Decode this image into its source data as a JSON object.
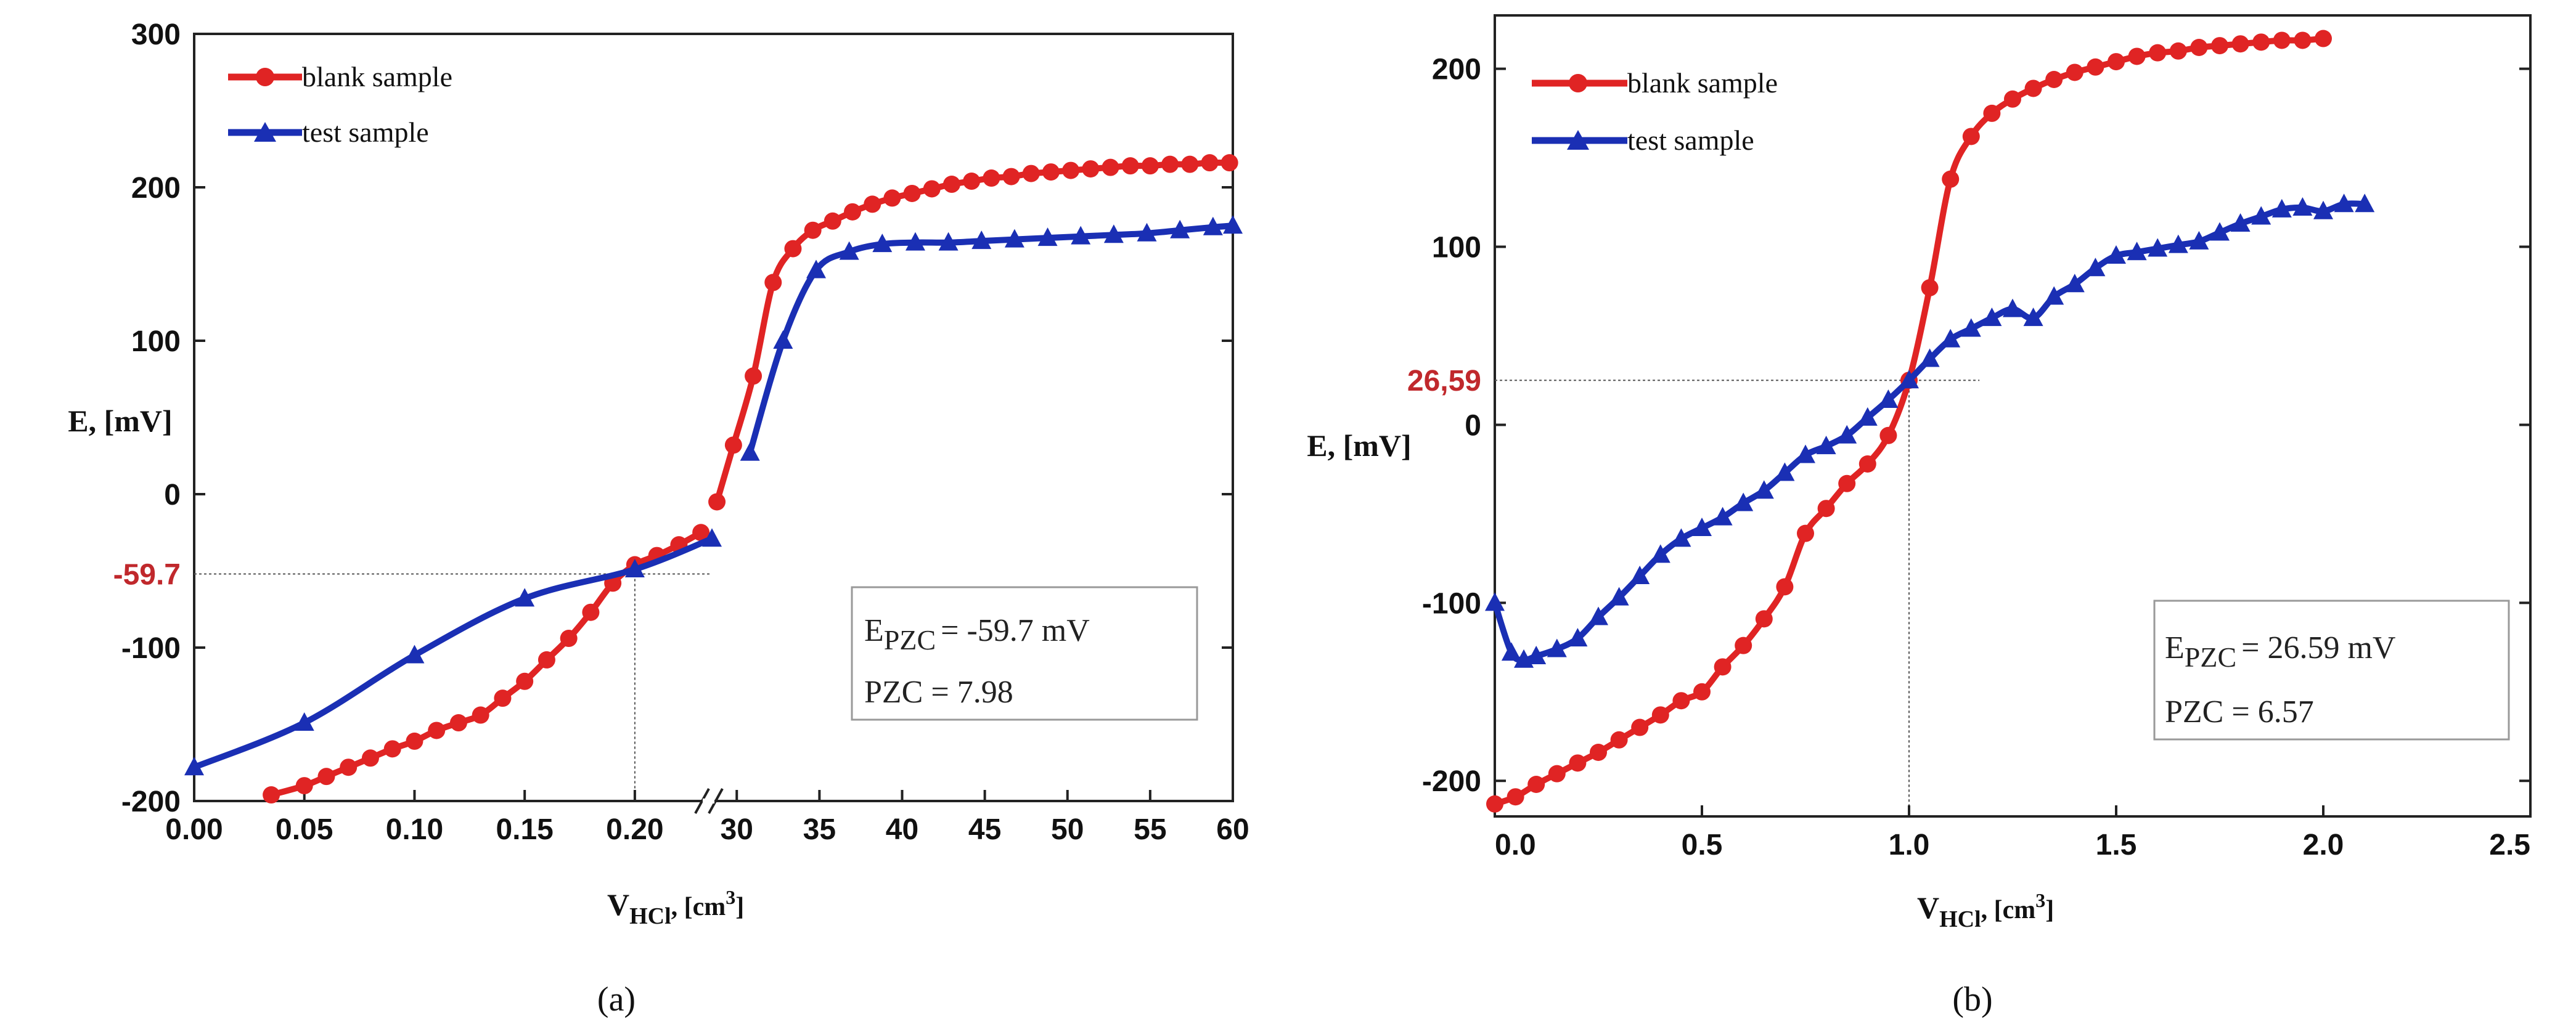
{
  "chart_data": [
    {
      "panel_label": "(a)",
      "panel_letter": "a",
      "type": "line",
      "xlabel_main": "V",
      "xlabel_sub": "HCl",
      "xlabel_unit": ", [cm",
      "xlabel_exp": "3",
      "xlabel_close": "]",
      "ylabel": "E, [mV]",
      "broken_x_axis": true,
      "x_segments": [
        {
          "xlim": [
            0.0,
            0.235
          ],
          "ticks": [
            "0.00",
            "0.05",
            "0.10",
            "0.15",
            "0.20"
          ],
          "tick_values": [
            0.0,
            0.05,
            0.1,
            0.15,
            0.2
          ]
        },
        {
          "xlim": [
            28.5,
            60
          ],
          "ticks": [
            "30",
            "35",
            "40",
            "45",
            "50",
            "55",
            "60"
          ],
          "tick_values": [
            30,
            35,
            40,
            45,
            50,
            55,
            60
          ]
        }
      ],
      "extra_tick_labels": [
        "0.20"
      ],
      "ylim": [
        -200,
        300
      ],
      "yticks": [
        "-200",
        "-100",
        "0",
        "100",
        "200",
        "300"
      ],
      "ytick_values": [
        -200,
        -100,
        0,
        100,
        200,
        300
      ],
      "legend_position": "top-left",
      "series": [
        {
          "name": "blank sample",
          "color": "#e02424",
          "marker": "circle",
          "low": [
            [
              0.035,
              -196
            ],
            [
              0.05,
              -190
            ],
            [
              0.06,
              -184
            ],
            [
              0.07,
              -178
            ],
            [
              0.08,
              -172
            ],
            [
              0.09,
              -166
            ],
            [
              0.1,
              -161
            ],
            [
              0.11,
              -154
            ],
            [
              0.12,
              -149
            ],
            [
              0.13,
              -144
            ],
            [
              0.14,
              -133
            ],
            [
              0.15,
              -122
            ],
            [
              0.16,
              -108
            ],
            [
              0.17,
              -94
            ],
            [
              0.18,
              -77
            ],
            [
              0.19,
              -58
            ],
            [
              0.2,
              -46
            ],
            [
              0.21,
              -40
            ],
            [
              0.22,
              -33
            ],
            [
              0.23,
              -25
            ]
          ],
          "high": [
            [
              28.8,
              -5
            ],
            [
              29.8,
              32
            ],
            [
              31.0,
              77
            ],
            [
              32.2,
              138
            ],
            [
              33.4,
              160
            ],
            [
              34.6,
              172
            ],
            [
              35.8,
              178
            ],
            [
              37.0,
              184
            ],
            [
              38.2,
              189
            ],
            [
              39.4,
              193
            ],
            [
              40.6,
              196
            ],
            [
              41.8,
              199
            ],
            [
              43.0,
              202
            ],
            [
              44.2,
              204
            ],
            [
              45.4,
              206
            ],
            [
              46.6,
              207
            ],
            [
              47.8,
              209
            ],
            [
              49.0,
              210
            ],
            [
              50.2,
              211
            ],
            [
              51.4,
              212
            ],
            [
              52.6,
              213
            ],
            [
              53.8,
              214
            ],
            [
              55.0,
              214
            ],
            [
              56.2,
              215
            ],
            [
              57.4,
              215
            ],
            [
              58.6,
              216
            ],
            [
              59.8,
              216
            ]
          ]
        },
        {
          "name": "test sample",
          "color": "#1a2fb4",
          "marker": "triangle",
          "low": [
            [
              0.0,
              -178
            ],
            [
              0.05,
              -149
            ],
            [
              0.1,
              -105
            ],
            [
              0.15,
              -68
            ],
            [
              0.2,
              -49
            ],
            [
              0.235,
              -29
            ]
          ],
          "high": [
            [
              30.8,
              27
            ],
            [
              32.8,
              100
            ],
            [
              34.8,
              146
            ],
            [
              36.8,
              158
            ],
            [
              38.8,
              163
            ],
            [
              40.8,
              164
            ],
            [
              42.8,
              164
            ],
            [
              44.8,
              165
            ],
            [
              46.8,
              166
            ],
            [
              48.8,
              167
            ],
            [
              50.8,
              168
            ],
            [
              52.8,
              169
            ],
            [
              54.8,
              170
            ],
            [
              56.8,
              172
            ],
            [
              58.8,
              174
            ],
            [
              60.0,
              175
            ]
          ]
        }
      ],
      "reference": {
        "label": "-59.7",
        "y": -52,
        "x": 0.2
      },
      "annotation": {
        "e_symbol": "E",
        "e_sub": "PZC",
        "e_value": "= -59.7 mV",
        "pzc_text": "PZC =  7.98"
      }
    },
    {
      "panel_label": "(b)",
      "panel_letter": "b",
      "type": "line",
      "xlabel_main": "V",
      "xlabel_sub": "HCl",
      "xlabel_unit": ", [cm",
      "xlabel_exp": "3",
      "xlabel_close": "]",
      "ylabel": "E, [mV]",
      "xlim": [
        0.0,
        2.5
      ],
      "xticks": [
        "0.0",
        "0.5",
        "1.0",
        "1.5",
        "2.0",
        "2.5"
      ],
      "xtick_values": [
        0.0,
        0.5,
        1.0,
        1.5,
        2.0,
        2.5
      ],
      "ylim": [
        -220,
        230
      ],
      "yticks": [
        "-200",
        "-100",
        "0",
        "100",
        "200"
      ],
      "ytick_values": [
        -200,
        -100,
        0,
        100,
        200
      ],
      "legend_position": "top-left",
      "series": [
        {
          "name": "blank sample",
          "color": "#e02424",
          "marker": "circle",
          "points": [
            [
              0.0,
              -213
            ],
            [
              0.05,
              -209
            ],
            [
              0.1,
              -202
            ],
            [
              0.15,
              -196
            ],
            [
              0.2,
              -190
            ],
            [
              0.25,
              -184
            ],
            [
              0.3,
              -177
            ],
            [
              0.35,
              -170
            ],
            [
              0.4,
              -163
            ],
            [
              0.45,
              -155
            ],
            [
              0.5,
              -150
            ],
            [
              0.55,
              -136
            ],
            [
              0.6,
              -124
            ],
            [
              0.65,
              -109
            ],
            [
              0.7,
              -91
            ],
            [
              0.75,
              -61
            ],
            [
              0.8,
              -47
            ],
            [
              0.85,
              -33
            ],
            [
              0.9,
              -22
            ],
            [
              0.95,
              -6
            ],
            [
              1.0,
              25
            ],
            [
              1.05,
              77
            ],
            [
              1.1,
              138
            ],
            [
              1.15,
              162
            ],
            [
              1.2,
              175
            ],
            [
              1.25,
              183
            ],
            [
              1.3,
              189
            ],
            [
              1.35,
              194
            ],
            [
              1.4,
              198
            ],
            [
              1.45,
              201
            ],
            [
              1.5,
              204
            ],
            [
              1.55,
              207
            ],
            [
              1.6,
              209
            ],
            [
              1.65,
              210
            ],
            [
              1.7,
              212
            ],
            [
              1.75,
              213
            ],
            [
              1.8,
              214
            ],
            [
              1.85,
              215
            ],
            [
              1.9,
              216
            ],
            [
              1.95,
              216
            ],
            [
              2.0,
              217
            ]
          ]
        },
        {
          "name": "test sample",
          "color": "#1a2fb4",
          "marker": "triangle",
          "points": [
            [
              0.0,
              -100
            ],
            [
              0.04,
              -128
            ],
            [
              0.07,
              -132
            ],
            [
              0.1,
              -130
            ],
            [
              0.15,
              -126
            ],
            [
              0.2,
              -120
            ],
            [
              0.25,
              -108
            ],
            [
              0.3,
              -97
            ],
            [
              0.35,
              -85
            ],
            [
              0.4,
              -73
            ],
            [
              0.45,
              -64
            ],
            [
              0.5,
              -58
            ],
            [
              0.55,
              -52
            ],
            [
              0.6,
              -44
            ],
            [
              0.65,
              -37
            ],
            [
              0.7,
              -27
            ],
            [
              0.75,
              -17
            ],
            [
              0.8,
              -12
            ],
            [
              0.85,
              -6
            ],
            [
              0.9,
              4
            ],
            [
              0.95,
              14
            ],
            [
              1.0,
              25
            ],
            [
              1.05,
              37
            ],
            [
              1.1,
              48
            ],
            [
              1.15,
              54
            ],
            [
              1.2,
              60
            ],
            [
              1.25,
              65
            ],
            [
              1.3,
              60
            ],
            [
              1.35,
              72
            ],
            [
              1.4,
              79
            ],
            [
              1.45,
              88
            ],
            [
              1.5,
              95
            ],
            [
              1.55,
              97
            ],
            [
              1.6,
              99
            ],
            [
              1.65,
              101
            ],
            [
              1.7,
              103
            ],
            [
              1.75,
              108
            ],
            [
              1.8,
              113
            ],
            [
              1.85,
              117
            ],
            [
              1.9,
              121
            ],
            [
              1.95,
              122
            ],
            [
              2.0,
              120
            ],
            [
              2.05,
              124
            ],
            [
              2.1,
              124
            ]
          ]
        }
      ],
      "reference": {
        "label": "26,59",
        "y": 25,
        "x": 1.0
      },
      "annotation": {
        "e_symbol": "E",
        "e_sub": "PZC",
        "e_value": "= 26.59 mV",
        "pzc_text": "PZC =  6.57"
      }
    }
  ]
}
